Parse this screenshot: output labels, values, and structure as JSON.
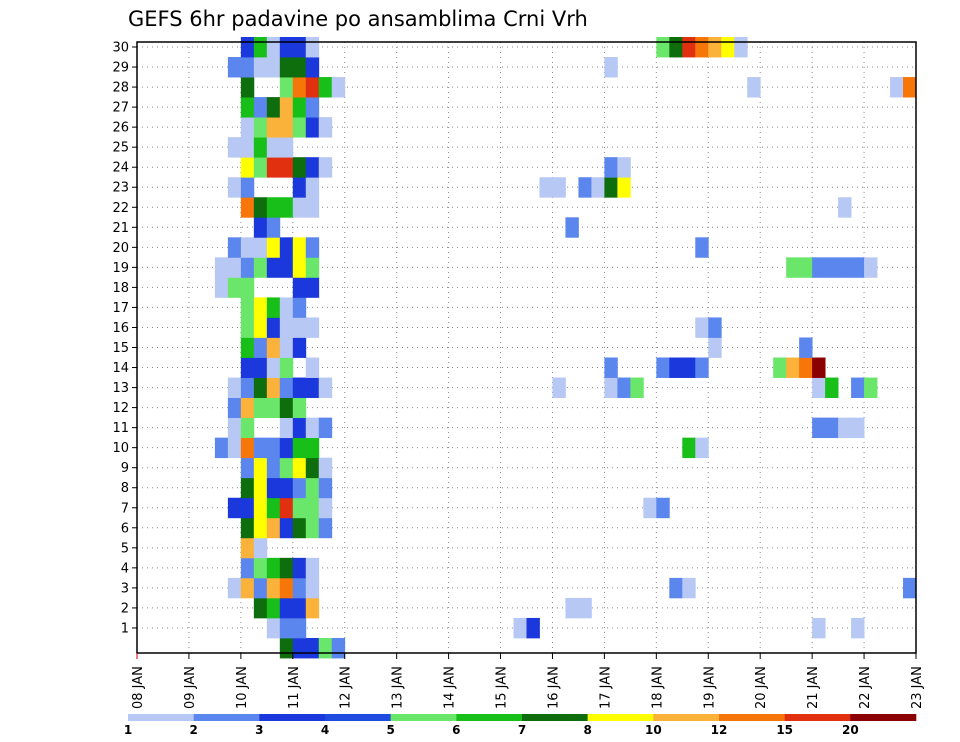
{
  "chart_data": {
    "type": "heatmap",
    "title": "GEFS 6hr padavine po ansamblima Crni Vrh",
    "x_tick_labels": [
      "08 JAN",
      "09 JAN",
      "10 JAN",
      "11 JAN",
      "12 JAN",
      "13 JAN",
      "14 JAN",
      "15 JAN",
      "16 JAN",
      "17 JAN",
      "18 JAN",
      "19 JAN",
      "20 JAN",
      "21 JAN",
      "22 JAN",
      "23 JAN"
    ],
    "y_tick_labels": [
      "1",
      "2",
      "3",
      "4",
      "5",
      "6",
      "7",
      "8",
      "9",
      "10",
      "11",
      "12",
      "13",
      "14",
      "15",
      "16",
      "17",
      "18",
      "19",
      "20",
      "21",
      "22",
      "23",
      "24",
      "25",
      "26",
      "27",
      "28",
      "29",
      "30"
    ],
    "x_range_days": [
      8,
      23
    ],
    "y_range": [
      0,
      30
    ],
    "cell_hours": 6,
    "grid": "dotted",
    "legend": {
      "placement": "bottom",
      "labels": [
        "1",
        "2",
        "3",
        "4",
        "5",
        "6",
        "7",
        "8",
        "10",
        "12",
        "15",
        "20"
      ],
      "colors": [
        "#b8c8f4",
        "#5b86ee",
        "#1b38dc",
        "#1f4be0",
        "#6ae66a",
        "#18bf18",
        "#0e6e0e",
        "#ffff00",
        "#fbb23a",
        "#f6760a",
        "#e03010",
        "#8b0000"
      ]
    },
    "palette": {
      "L1": "#b8c8f4",
      "L2": "#5b86ee",
      "L3": "#1b38dc",
      "L5": "#6ae66a",
      "L6": "#18bf18",
      "L7": "#0e6e0e",
      "L8": "#ffff00",
      "L10": "#fbb23a",
      "L12": "#f6760a",
      "L15": "#e03010",
      "L20": "#8b0000"
    },
    "members": {
      "0": [
        [
          10.75,
          "L7"
        ],
        [
          11.0,
          "L3"
        ],
        [
          11.25,
          "L3"
        ],
        [
          11.5,
          "L5"
        ],
        [
          11.75,
          "L2"
        ]
      ],
      "1": [
        [
          10.5,
          "L1"
        ],
        [
          10.75,
          "L2"
        ],
        [
          11.0,
          "L2"
        ],
        [
          15.25,
          "L1"
        ],
        [
          15.5,
          "L3"
        ],
        [
          21.0,
          "L1"
        ],
        [
          21.75,
          "L1"
        ]
      ],
      "2": [
        [
          10.25,
          "L7"
        ],
        [
          10.5,
          "L6"
        ],
        [
          10.75,
          "L3"
        ],
        [
          11.0,
          "L3"
        ],
        [
          11.25,
          "L10"
        ],
        [
          16.25,
          "L1"
        ],
        [
          16.5,
          "L1"
        ]
      ],
      "3": [
        [
          9.75,
          "L1"
        ],
        [
          10.0,
          "L10"
        ],
        [
          10.25,
          "L2"
        ],
        [
          10.5,
          "L10"
        ],
        [
          10.75,
          "L12"
        ],
        [
          11.0,
          "L2"
        ],
        [
          11.25,
          "L1"
        ],
        [
          18.25,
          "L2"
        ],
        [
          18.5,
          "L1"
        ],
        [
          22.75,
          "L2"
        ]
      ],
      "4": [
        [
          10.0,
          "L2"
        ],
        [
          10.25,
          "L5"
        ],
        [
          10.5,
          "L6"
        ],
        [
          10.75,
          "L7"
        ],
        [
          11.0,
          "L3"
        ],
        [
          11.25,
          "L1"
        ]
      ],
      "5": [
        [
          10.0,
          "L10"
        ],
        [
          10.25,
          "L1"
        ]
      ],
      "6": [
        [
          10.0,
          "L7"
        ],
        [
          10.25,
          "L8"
        ],
        [
          10.5,
          "L10"
        ],
        [
          10.75,
          "L3"
        ],
        [
          11.0,
          "L7"
        ],
        [
          11.25,
          "L5"
        ],
        [
          11.5,
          "L2"
        ]
      ],
      "7": [
        [
          9.75,
          "L3"
        ],
        [
          10.0,
          "L3"
        ],
        [
          10.25,
          "L8"
        ],
        [
          10.5,
          "L6"
        ],
        [
          10.75,
          "L15"
        ],
        [
          11.0,
          "L5"
        ],
        [
          11.25,
          "L5"
        ],
        [
          11.5,
          "L1"
        ],
        [
          17.75,
          "L1"
        ],
        [
          18.0,
          "L2"
        ]
      ],
      "8": [
        [
          10.0,
          "L7"
        ],
        [
          10.25,
          "L8"
        ],
        [
          10.5,
          "L3"
        ],
        [
          10.75,
          "L3"
        ],
        [
          11.0,
          "L2"
        ],
        [
          11.25,
          "L5"
        ],
        [
          11.5,
          "L2"
        ]
      ],
      "9": [
        [
          10.0,
          "L2"
        ],
        [
          10.25,
          "L8"
        ],
        [
          10.5,
          "L2"
        ],
        [
          10.75,
          "L5"
        ],
        [
          11.0,
          "L8"
        ],
        [
          11.25,
          "L7"
        ],
        [
          11.5,
          "L1"
        ]
      ],
      "10": [
        [
          9.5,
          "L2"
        ],
        [
          9.75,
          "L1"
        ],
        [
          10.0,
          "L12"
        ],
        [
          10.25,
          "L2"
        ],
        [
          10.5,
          "L2"
        ],
        [
          10.75,
          "L3"
        ],
        [
          11.0,
          "L6"
        ],
        [
          11.25,
          "L6"
        ],
        [
          18.5,
          "L6"
        ],
        [
          18.75,
          "L1"
        ]
      ],
      "11": [
        [
          9.75,
          "L1"
        ],
        [
          10.0,
          "L5"
        ],
        [
          10.75,
          "L1"
        ],
        [
          11.0,
          "L3"
        ],
        [
          11.25,
          "L1"
        ],
        [
          11.5,
          "L2"
        ],
        [
          21.0,
          "L2"
        ],
        [
          21.25,
          "L2"
        ],
        [
          21.5,
          "L1"
        ],
        [
          21.75,
          "L1"
        ]
      ],
      "12": [
        [
          9.75,
          "L2"
        ],
        [
          10.0,
          "L10"
        ],
        [
          10.25,
          "L5"
        ],
        [
          10.5,
          "L5"
        ],
        [
          10.75,
          "L7"
        ],
        [
          11.0,
          "L5"
        ]
      ],
      "13": [
        [
          9.75,
          "L1"
        ],
        [
          10.0,
          "L2"
        ],
        [
          10.25,
          "L7"
        ],
        [
          10.5,
          "L10"
        ],
        [
          10.75,
          "L2"
        ],
        [
          11.0,
          "L3"
        ],
        [
          11.25,
          "L3"
        ],
        [
          11.5,
          "L1"
        ],
        [
          16.0,
          "L1"
        ],
        [
          17.0,
          "L1"
        ],
        [
          17.25,
          "L2"
        ],
        [
          17.5,
          "L5"
        ],
        [
          21.0,
          "L1"
        ],
        [
          21.25,
          "L6"
        ],
        [
          21.75,
          "L2"
        ],
        [
          22.0,
          "L5"
        ]
      ],
      "14": [
        [
          10.0,
          "L3"
        ],
        [
          10.25,
          "L3"
        ],
        [
          10.5,
          "L1"
        ],
        [
          10.75,
          "L5"
        ],
        [
          11.25,
          "L1"
        ],
        [
          17.0,
          "L2"
        ],
        [
          18.0,
          "L2"
        ],
        [
          18.25,
          "L3"
        ],
        [
          18.5,
          "L3"
        ],
        [
          18.75,
          "L2"
        ],
        [
          20.25,
          "L5"
        ],
        [
          20.5,
          "L10"
        ],
        [
          20.75,
          "L12"
        ],
        [
          21.0,
          "L20"
        ]
      ],
      "15": [
        [
          10.0,
          "L6"
        ],
        [
          10.25,
          "L2"
        ],
        [
          10.5,
          "L10"
        ],
        [
          10.75,
          "L1"
        ],
        [
          11.0,
          "L3"
        ],
        [
          19.0,
          "L1"
        ],
        [
          20.75,
          "L2"
        ]
      ],
      "16": [
        [
          10.0,
          "L5"
        ],
        [
          10.25,
          "L8"
        ],
        [
          10.5,
          "L3"
        ],
        [
          10.75,
          "L1"
        ],
        [
          11.0,
          "L1"
        ],
        [
          11.25,
          "L1"
        ],
        [
          18.75,
          "L1"
        ],
        [
          19.0,
          "L2"
        ]
      ],
      "17": [
        [
          10.0,
          "L5"
        ],
        [
          10.25,
          "L8"
        ],
        [
          10.5,
          "L6"
        ],
        [
          10.75,
          "L1"
        ],
        [
          11.0,
          "L2"
        ]
      ],
      "18": [
        [
          9.5,
          "L1"
        ],
        [
          9.75,
          "L5"
        ],
        [
          10.0,
          "L5"
        ],
        [
          11.0,
          "L3"
        ],
        [
          11.25,
          "L3"
        ]
      ],
      "19": [
        [
          9.5,
          "L1"
        ],
        [
          9.75,
          "L1"
        ],
        [
          10.0,
          "L2"
        ],
        [
          10.25,
          "L5"
        ],
        [
          10.5,
          "L3"
        ],
        [
          10.75,
          "L3"
        ],
        [
          11.0,
          "L8"
        ],
        [
          11.25,
          "L5"
        ],
        [
          20.5,
          "L5"
        ],
        [
          20.75,
          "L5"
        ],
        [
          21.0,
          "L2"
        ],
        [
          21.25,
          "L2"
        ],
        [
          21.5,
          "L2"
        ],
        [
          21.75,
          "L2"
        ],
        [
          22.0,
          "L1"
        ]
      ],
      "20": [
        [
          9.75,
          "L2"
        ],
        [
          10.0,
          "L1"
        ],
        [
          10.25,
          "L1"
        ],
        [
          10.5,
          "L8"
        ],
        [
          10.75,
          "L3"
        ],
        [
          11.0,
          "L8"
        ],
        [
          11.25,
          "L2"
        ],
        [
          18.75,
          "L2"
        ]
      ],
      "21": [
        [
          10.25,
          "L3"
        ],
        [
          10.5,
          "L2"
        ],
        [
          16.25,
          "L2"
        ]
      ],
      "22": [
        [
          10.0,
          "L12"
        ],
        [
          10.25,
          "L7"
        ],
        [
          10.5,
          "L6"
        ],
        [
          10.75,
          "L6"
        ],
        [
          11.0,
          "L1"
        ],
        [
          11.25,
          "L1"
        ],
        [
          21.5,
          "L1"
        ]
      ],
      "23": [
        [
          9.75,
          "L1"
        ],
        [
          10.0,
          "L2"
        ],
        [
          11.0,
          "L3"
        ],
        [
          11.25,
          "L1"
        ],
        [
          15.75,
          "L1"
        ],
        [
          16.0,
          "L1"
        ],
        [
          16.5,
          "L2"
        ],
        [
          16.75,
          "L1"
        ],
        [
          17.0,
          "L7"
        ],
        [
          17.25,
          "L8"
        ]
      ],
      "24": [
        [
          10.0,
          "L8"
        ],
        [
          10.25,
          "L5"
        ],
        [
          10.5,
          "L15"
        ],
        [
          10.75,
          "L15"
        ],
        [
          11.0,
          "L7"
        ],
        [
          11.25,
          "L3"
        ],
        [
          11.5,
          "L1"
        ],
        [
          17.0,
          "L2"
        ],
        [
          17.25,
          "L1"
        ]
      ],
      "25": [
        [
          9.75,
          "L1"
        ],
        [
          10.0,
          "L1"
        ],
        [
          10.25,
          "L6"
        ],
        [
          10.5,
          "L1"
        ],
        [
          10.75,
          "L1"
        ]
      ],
      "26": [
        [
          10.0,
          "L1"
        ],
        [
          10.25,
          "L5"
        ],
        [
          10.5,
          "L10"
        ],
        [
          10.75,
          "L10"
        ],
        [
          11.0,
          "L5"
        ],
        [
          11.25,
          "L3"
        ],
        [
          11.5,
          "L1"
        ]
      ],
      "27": [
        [
          10.0,
          "L6"
        ],
        [
          10.25,
          "L2"
        ],
        [
          10.5,
          "L7"
        ],
        [
          10.75,
          "L10"
        ],
        [
          11.0,
          "L6"
        ],
        [
          11.25,
          "L2"
        ]
      ],
      "28": [
        [
          10.0,
          "L7"
        ],
        [
          10.75,
          "L5"
        ],
        [
          11.0,
          "L12"
        ],
        [
          11.25,
          "L15"
        ],
        [
          11.5,
          "L6"
        ],
        [
          11.75,
          "L1"
        ],
        [
          19.75,
          "L1"
        ],
        [
          22.5,
          "L1"
        ],
        [
          22.75,
          "L12"
        ]
      ],
      "29": [
        [
          9.75,
          "L2"
        ],
        [
          10.0,
          "L2"
        ],
        [
          10.25,
          "L1"
        ],
        [
          10.5,
          "L1"
        ],
        [
          10.75,
          "L7"
        ],
        [
          11.0,
          "L7"
        ],
        [
          11.25,
          "L3"
        ],
        [
          17.0,
          "L1"
        ]
      ],
      "30": [
        [
          10.0,
          "L3"
        ],
        [
          10.25,
          "L6"
        ],
        [
          10.5,
          "L1"
        ],
        [
          10.75,
          "L3"
        ],
        [
          11.0,
          "L3"
        ],
        [
          11.25,
          "L1"
        ],
        [
          18.0,
          "L5"
        ],
        [
          18.25,
          "L7"
        ],
        [
          18.5,
          "L15"
        ],
        [
          18.75,
          "L12"
        ],
        [
          19.0,
          "L10"
        ],
        [
          19.25,
          "L8"
        ],
        [
          19.5,
          "L1"
        ]
      ]
    }
  }
}
